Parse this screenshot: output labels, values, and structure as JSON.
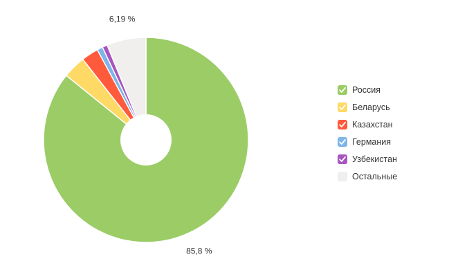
{
  "chart_data": {
    "type": "pie",
    "donut": true,
    "title": "",
    "legend_position": "right",
    "slices": [
      {
        "name": "Россия",
        "value": 85.8,
        "color": "#9bcc66",
        "checked": true
      },
      {
        "name": "Беларусь",
        "value": 3.6,
        "color": "#ffd966",
        "checked": true
      },
      {
        "name": "Казахстан",
        "value": 2.7,
        "color": "#ff5a3c",
        "checked": true
      },
      {
        "name": "Германия",
        "value": 0.9,
        "color": "#7fb5e8",
        "checked": true
      },
      {
        "name": "Узбекистан",
        "value": 0.8,
        "color": "#a855c0",
        "checked": true
      },
      {
        "name": "Остальные",
        "value": 6.19,
        "color": "#f0efed",
        "checked": false
      }
    ],
    "data_labels": [
      {
        "slice": "Россия",
        "text": "85,8 %"
      },
      {
        "slice": "Остальные",
        "text": "6,19 %"
      }
    ]
  }
}
